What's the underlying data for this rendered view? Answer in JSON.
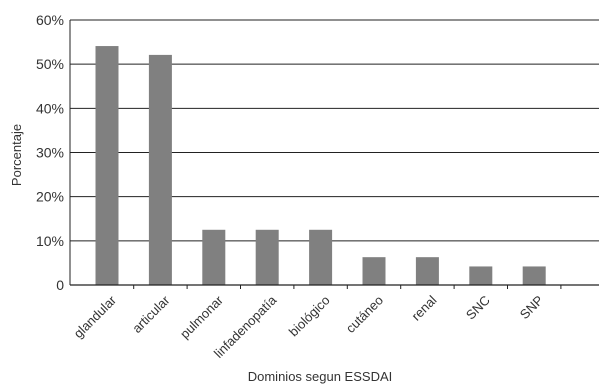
{
  "chart_data": {
    "type": "bar",
    "title": "",
    "xlabel": "Dominios segun ESSDAI",
    "ylabel": "Porcentaje",
    "categories": [
      "glandular",
      "articular",
      "pulmonar",
      "linfadenopatía",
      "biológico",
      "cutáneo",
      "renal",
      "SNC",
      "SNP"
    ],
    "values": [
      54.1,
      52.1,
      12.5,
      12.5,
      12.5,
      6.3,
      6.3,
      4.2,
      4.2
    ],
    "ylim": [
      0,
      60
    ],
    "yticks": [
      "0",
      "10%",
      "20%",
      "30%",
      "40%",
      "50%",
      "60%"
    ],
    "grid": true,
    "legend": "none",
    "bar_color": "#808080",
    "grid_color": "#222222"
  }
}
